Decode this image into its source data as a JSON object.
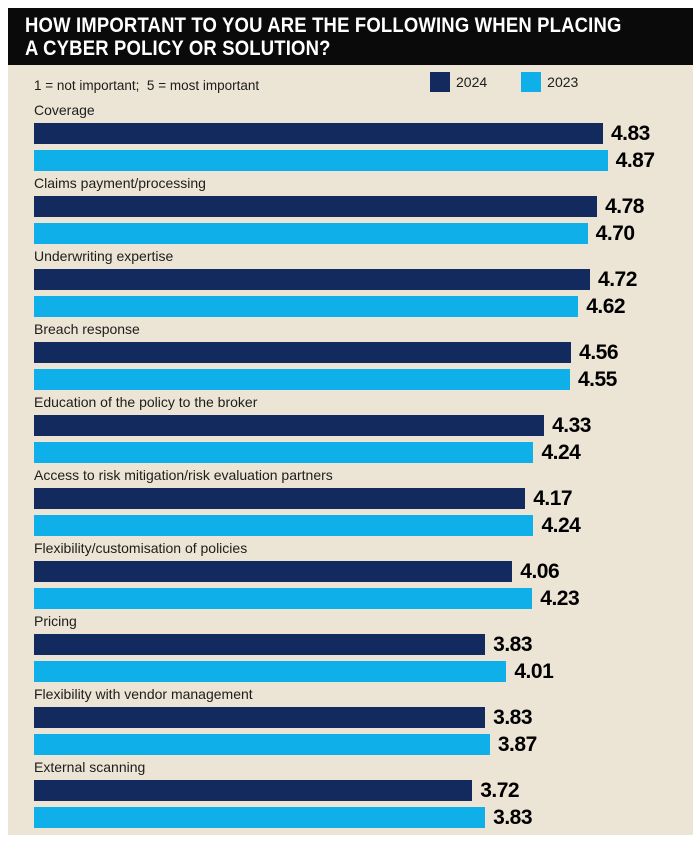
{
  "header": {
    "title_line1": "HOW IMPORTANT TO YOU ARE THE FOLLOWING WHEN PLACING",
    "title_line2": "A CYBER POLICY OR SOLUTION?"
  },
  "scale_note": "1 = not important;  5 = most important",
  "legend": [
    {
      "label": "2024",
      "color": "#122a5e"
    },
    {
      "label": "2023",
      "color": "#0fafe9"
    }
  ],
  "colors": {
    "page_background": "#ffffff",
    "panel_background": "#ece4d4",
    "title_band_background": "#0a0a0a",
    "title_text": "#ffffff",
    "series_2024": "#122a5e",
    "series_2023": "#0fafe9",
    "label_text": "#1d1d1b",
    "value_text": "#000000"
  },
  "chart_data": {
    "type": "bar",
    "orientation": "horizontal",
    "title": "HOW IMPORTANT TO YOU ARE THE FOLLOWING WHEN PLACING A CYBER POLICY OR SOLUTION?",
    "note": "1 = not important;  5 = most important",
    "value_range": [
      0,
      5
    ],
    "value_decimals": 2,
    "grid": false,
    "legend_position": "top-right",
    "categories": [
      "Coverage",
      "Claims payment/processing",
      "Underwriting expertise",
      "Breach response",
      "Education of the policy to the broker",
      "Access to risk mitigation/risk evaluation partners",
      "Flexibility/customisation of policies",
      "Pricing",
      "Flexibility with vendor management",
      "External scanning"
    ],
    "series": [
      {
        "name": "2024",
        "color": "#122a5e",
        "values": [
          4.83,
          4.78,
          4.72,
          4.56,
          4.33,
          4.17,
          4.06,
          3.83,
          3.83,
          3.72
        ]
      },
      {
        "name": "2023",
        "color": "#0fafe9",
        "values": [
          4.87,
          4.7,
          4.62,
          4.55,
          4.24,
          4.24,
          4.23,
          4.01,
          3.87,
          3.83
        ]
      }
    ]
  }
}
